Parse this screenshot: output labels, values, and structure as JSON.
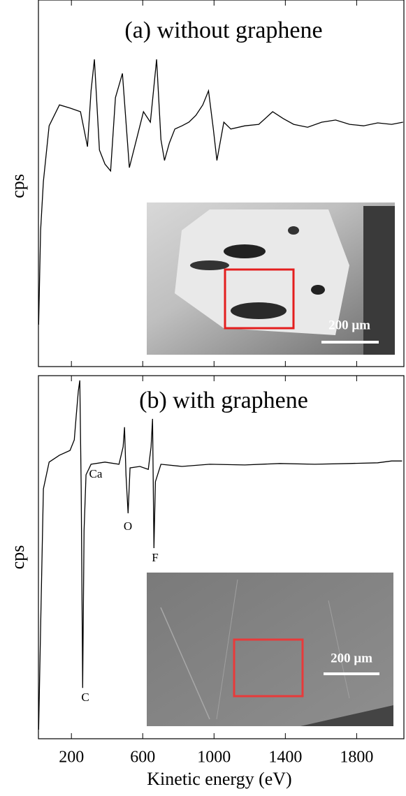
{
  "chart_data": [
    {
      "type": "line",
      "title": "(a) without graphene",
      "ylabel": "cps",
      "inset_scale": "200 μm",
      "color": "#000000",
      "xlim": [
        15,
        2065
      ],
      "ylim": [
        0,
        100
      ],
      "x": [
        16,
        27,
        43,
        75,
        133,
        192,
        251,
        290,
        310,
        329,
        357,
        388,
        420,
        447,
        486,
        525,
        565,
        604,
        643,
        678,
        702,
        722,
        749,
        780,
        820,
        859,
        898,
        937,
        969,
        996,
        1016,
        1055,
        1094,
        1173,
        1251,
        1329,
        1388,
        1447,
        1525,
        1604,
        1682,
        1761,
        1839,
        1918,
        1996,
        2060
      ],
      "values": [
        11.6,
        37.7,
        51.3,
        66.7,
        72.5,
        71.6,
        70.6,
        60.9,
        76.4,
        85.1,
        60.0,
        56.1,
        54.2,
        74.5,
        81.2,
        55.1,
        62.9,
        70.6,
        67.7,
        85.1,
        62.9,
        57.1,
        61.9,
        65.8,
        66.7,
        67.7,
        69.6,
        72.5,
        76.4,
        65.8,
        57.1,
        67.7,
        65.8,
        66.7,
        67.1,
        70.6,
        68.7,
        67.1,
        66.3,
        67.7,
        68.3,
        67.1,
        66.7,
        67.5,
        67.1,
        67.7
      ]
    },
    {
      "type": "line",
      "title": "(b) with graphene",
      "ylabel": "cps",
      "xlabel": "Kinetic energy (eV)",
      "inset_scale": "200 μm",
      "color": "#000000",
      "xlim": [
        15,
        2065
      ],
      "ylim": [
        0,
        100
      ],
      "xticks": [
        200,
        600,
        1000,
        1400,
        1800
      ],
      "x": [
        16,
        27,
        43,
        75,
        133,
        192,
        216,
        227,
        239,
        247,
        255,
        263,
        271,
        282,
        310,
        388,
        467,
        490,
        498,
        506,
        518,
        529,
        584,
        631,
        647,
        655,
        663,
        671,
        702,
        820,
        976,
        1173,
        1369,
        1565,
        1761,
        1918,
        1996,
        2055
      ],
      "values": [
        2.5,
        30.4,
        68.8,
        76.2,
        78.1,
        79.4,
        82.3,
        89.0,
        95.8,
        98.7,
        68.8,
        14.0,
        57.3,
        72.7,
        75.6,
        76.2,
        75.6,
        80.4,
        85.8,
        72.7,
        62.1,
        74.6,
        75.0,
        74.2,
        80.4,
        88.1,
        52.5,
        70.8,
        75.6,
        75.0,
        75.6,
        75.4,
        75.8,
        75.6,
        75.8,
        76.0,
        76.5,
        76.5
      ],
      "annotations": [
        "Ca",
        "O",
        "F",
        "C"
      ]
    }
  ]
}
